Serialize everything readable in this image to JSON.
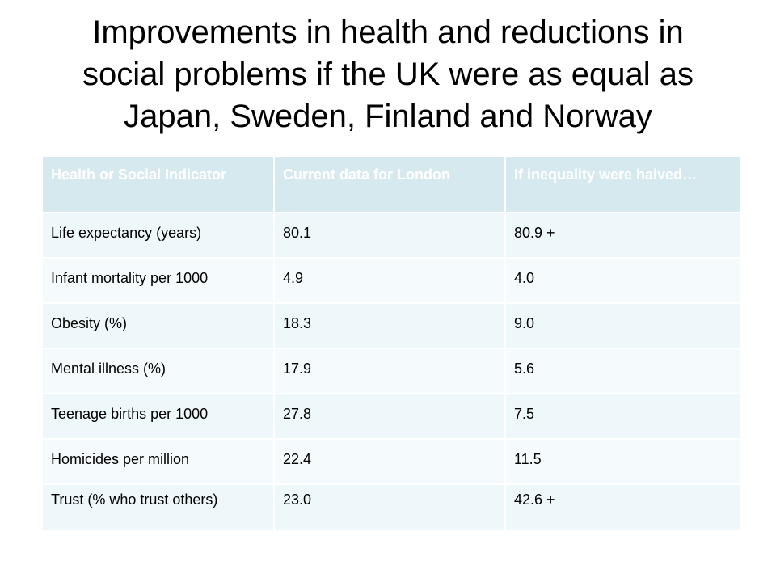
{
  "title": {
    "line1": "Improvements in health and reductions in",
    "line2": "social problems if the UK were as equal as",
    "line3": "Japan, Sweden, Finland and Norway"
  },
  "table": {
    "headers": [
      "Health or Social Indicator",
      "Current data for London",
      "If inequality were halved…"
    ],
    "rows": [
      [
        "Life expectancy (years)",
        "80.1",
        "80.9 +"
      ],
      [
        "Infant mortality per 1000",
        "4.9",
        "4.0"
      ],
      [
        "Obesity (%)",
        "18.3",
        "9.0"
      ],
      [
        "Mental illness (%)",
        "17.9",
        "5.6"
      ],
      [
        "Teenage births per 1000",
        "27.8",
        "7.5"
      ],
      [
        "Homicides per million",
        "22.4",
        "11.5"
      ],
      [
        "Trust (% who trust others)",
        "23.0",
        "42.6 +"
      ]
    ]
  },
  "colors": {
    "header_background": "#d6e9ee",
    "header_text": "#ffffff",
    "row_background_odd": "#eef7f9",
    "row_background_even": "#f5fbfc"
  }
}
